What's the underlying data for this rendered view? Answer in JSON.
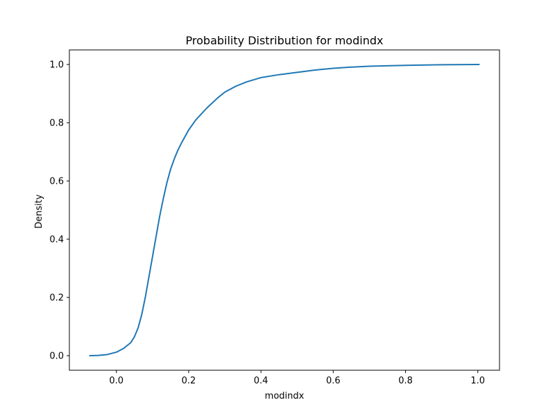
{
  "chart_data": {
    "type": "line",
    "title": "Probability Distribution for modindx",
    "xlabel": "modindx",
    "ylabel": "Density",
    "xlim": [
      -0.13,
      1.06
    ],
    "ylim": [
      -0.05,
      1.05
    ],
    "xticks": [
      0.0,
      0.2,
      0.4,
      0.6,
      0.8,
      1.0
    ],
    "xtick_labels": [
      "0.0",
      "0.2",
      "0.4",
      "0.6",
      "0.8",
      "1.0"
    ],
    "yticks": [
      0.0,
      0.2,
      0.4,
      0.6,
      0.8,
      1.0
    ],
    "ytick_labels": [
      "0.0",
      "0.2",
      "0.4",
      "0.6",
      "0.8",
      "1.0"
    ],
    "grid": false,
    "series": [
      {
        "color": "#1f77b4",
        "x": [
          -0.075,
          -0.05,
          -0.025,
          0.0,
          0.02,
          0.04,
          0.05,
          0.06,
          0.07,
          0.08,
          0.09,
          0.1,
          0.11,
          0.12,
          0.13,
          0.14,
          0.15,
          0.16,
          0.17,
          0.18,
          0.2,
          0.22,
          0.25,
          0.28,
          0.3,
          0.33,
          0.36,
          0.4,
          0.45,
          0.5,
          0.55,
          0.6,
          0.65,
          0.7,
          0.8,
          0.9,
          1.005
        ],
        "y": [
          0.0,
          0.001,
          0.004,
          0.012,
          0.025,
          0.045,
          0.065,
          0.095,
          0.14,
          0.2,
          0.27,
          0.34,
          0.41,
          0.48,
          0.54,
          0.595,
          0.64,
          0.675,
          0.705,
          0.73,
          0.775,
          0.81,
          0.85,
          0.885,
          0.905,
          0.925,
          0.94,
          0.955,
          0.965,
          0.973,
          0.981,
          0.987,
          0.991,
          0.994,
          0.997,
          0.999,
          1.0
        ]
      }
    ]
  }
}
